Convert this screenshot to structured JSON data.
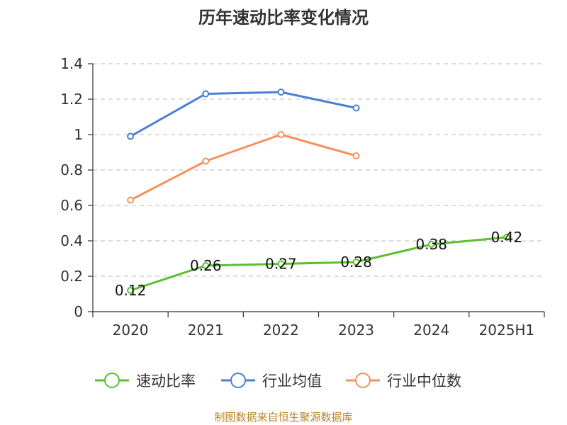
{
  "chart_data": {
    "type": "line",
    "title": "历年速动比率变化情况",
    "categories": [
      "2020",
      "2021",
      "2022",
      "2023",
      "2024",
      "2025H1"
    ],
    "ylim": [
      0,
      1.4
    ],
    "yticks": [
      "0",
      "0.2",
      "0.4",
      "0.6",
      "0.8",
      "1",
      "1.2",
      "1.4"
    ],
    "grid": true,
    "legend_position": "bottom",
    "series": [
      {
        "name": "速动比率",
        "color": "#5cbf2f",
        "values": [
          0.12,
          0.26,
          0.27,
          0.28,
          0.38,
          0.42
        ],
        "labels": [
          "0.12",
          "0.26",
          "0.27",
          "0.28",
          "0.38",
          "0.42"
        ]
      },
      {
        "name": "行业均值",
        "color": "#4a7fd6",
        "values": [
          0.99,
          1.23,
          1.24,
          1.15,
          null,
          null
        ]
      },
      {
        "name": "行业中位数",
        "color": "#f5925b",
        "values": [
          0.63,
          0.85,
          1.0,
          0.88,
          null,
          null
        ]
      }
    ],
    "source": "制图数据来自恒生聚源数据库"
  }
}
